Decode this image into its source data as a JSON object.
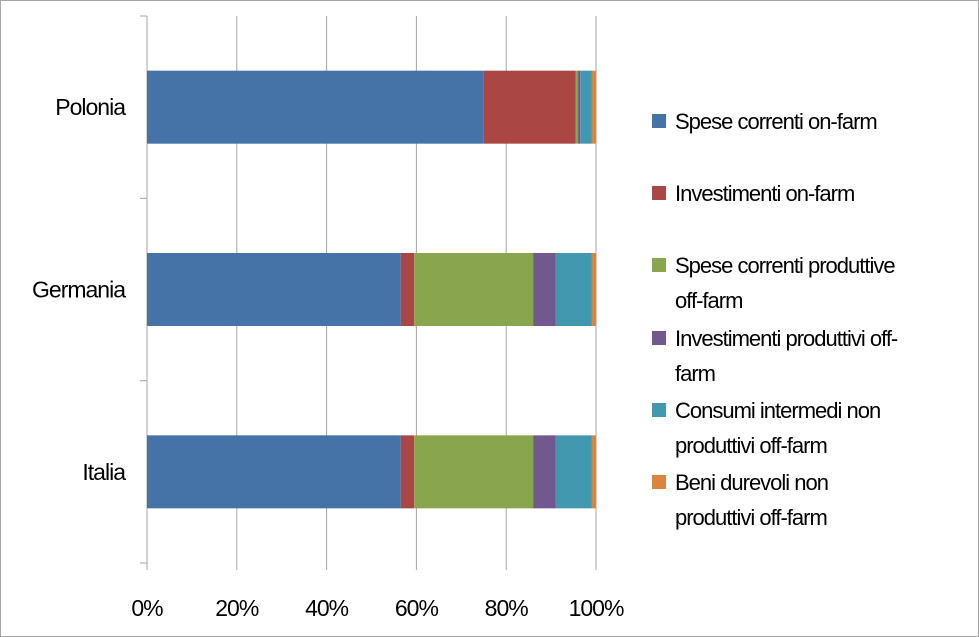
{
  "chart_data": {
    "type": "bar",
    "orientation": "horizontal",
    "stacked": "percent",
    "categories": [
      "Polonia",
      "Germania",
      "Italia"
    ],
    "xlim": [
      0,
      100
    ],
    "x_ticks": [
      "0%",
      "20%",
      "40%",
      "60%",
      "80%",
      "100%"
    ],
    "grid": true,
    "legend_position": "right",
    "series": [
      {
        "name": "Spese correnti on-farm",
        "legend_lines": [
          "Spese correnti on-farm"
        ],
        "color": "#4572a7",
        "values": [
          75,
          56.5,
          56.5
        ]
      },
      {
        "name": "Investimenti on-farm",
        "legend_lines": [
          "Investimenti on-farm"
        ],
        "color": "#aa4643",
        "values": [
          20.5,
          3,
          3
        ]
      },
      {
        "name": "Spese correnti produttive off-farm",
        "legend_lines": [
          "Spese correnti produttive",
          "off-farm"
        ],
        "color": "#89a54e",
        "values": [
          0.5,
          26.5,
          26.5
        ]
      },
      {
        "name": "Investimenti produttivi off-farm",
        "legend_lines": [
          "Investimenti produttivi off-",
          "farm"
        ],
        "color": "#71588f",
        "values": [
          0.5,
          5,
          5
        ]
      },
      {
        "name": "Consumi intermedi non produttivi off-farm",
        "legend_lines": [
          "Consumi intermedi non",
          "produttivi off-farm"
        ],
        "color": "#4198af",
        "values": [
          2.5,
          8,
          8
        ]
      },
      {
        "name": "Beni durevoli non produttivi off-farm",
        "legend_lines": [
          "Beni durevoli non",
          "produttivi off-farm"
        ],
        "color": "#db843d",
        "values": [
          1,
          1,
          1
        ]
      }
    ]
  }
}
